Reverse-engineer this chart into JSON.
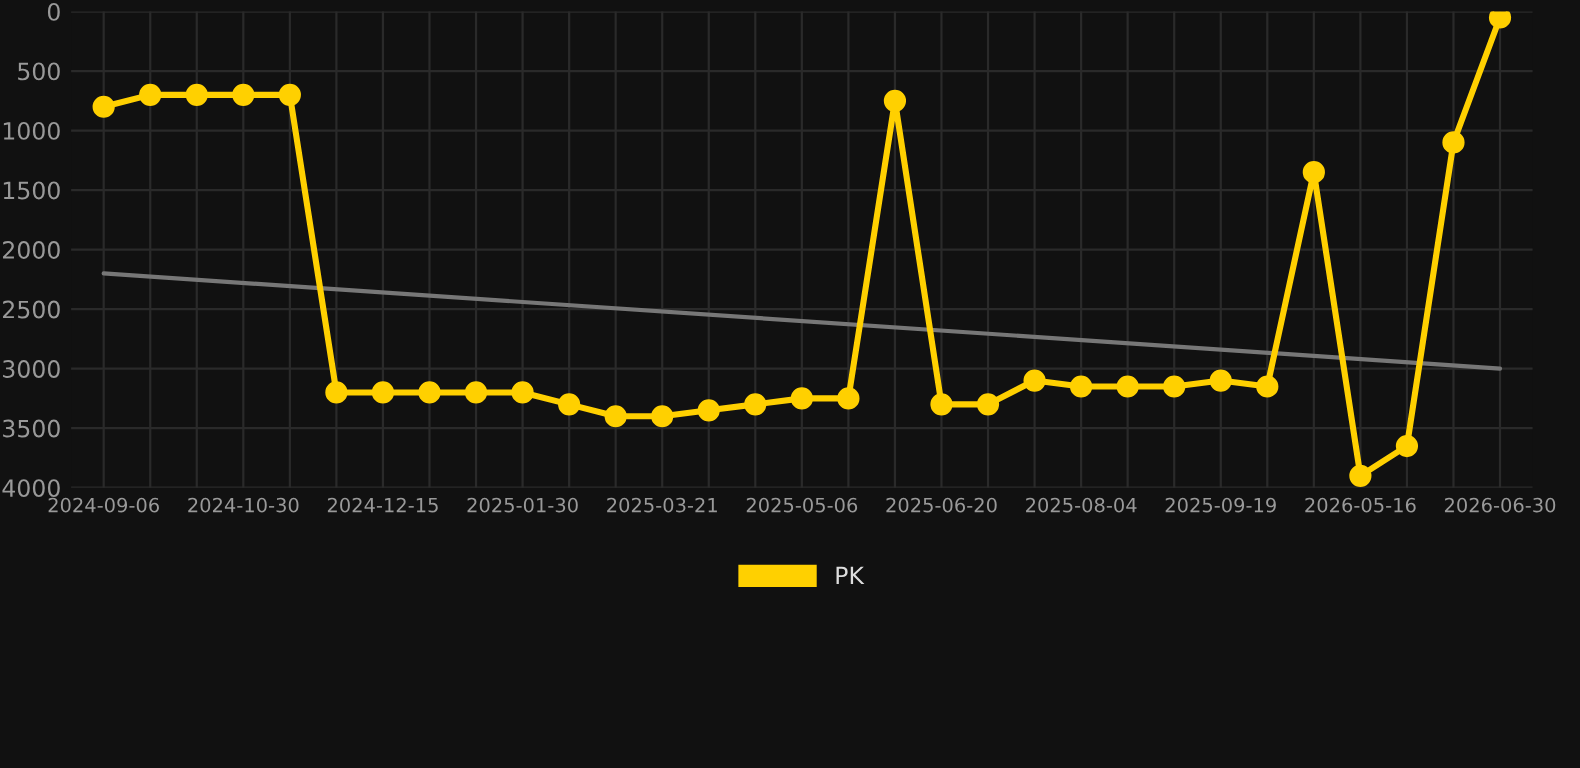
{
  "chart_data": {
    "type": "line",
    "categories": [
      "2024-09-06",
      null,
      null,
      "2024-10-30",
      null,
      null,
      "2024-12-15",
      null,
      null,
      "2025-01-30",
      null,
      null,
      "2025-03-21",
      null,
      null,
      "2025-05-06",
      null,
      null,
      "2025-06-20",
      null,
      null,
      "2025-08-04",
      null,
      null,
      "2025-09-19",
      null,
      null,
      "2026-05-16",
      null,
      null,
      "2026-06-30"
    ],
    "series": [
      {
        "name": "PK",
        "color": "#ffd000",
        "marker": "circle",
        "values": [
          800,
          700,
          700,
          700,
          700,
          3200,
          3200,
          3200,
          3200,
          3200,
          3300,
          3400,
          3400,
          3350,
          3300,
          3250,
          3250,
          750,
          3300,
          3300,
          3100,
          3150,
          3150,
          3150,
          3100,
          3150,
          1350,
          3900,
          3650,
          1100,
          50
        ]
      },
      {
        "type": "line",
        "color": "#777777",
        "marker": "none",
        "values": [
          2200,
          null,
          null,
          null,
          null,
          null,
          null,
          null,
          null,
          null,
          null,
          null,
          null,
          null,
          null,
          null,
          null,
          null,
          null,
          null,
          null,
          null,
          null,
          null,
          null,
          null,
          null,
          null,
          null,
          null,
          3000
        ]
      }
    ],
    "ylim": [
      4000,
      0
    ],
    "yticks": [
      0,
      500,
      1000,
      1500,
      2000,
      2500,
      3000,
      3500,
      4000
    ],
    "grid": true,
    "legend": "bottom"
  }
}
